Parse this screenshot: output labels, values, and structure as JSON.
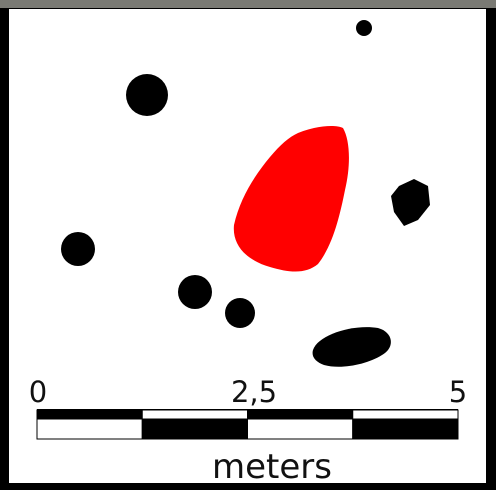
{
  "colors": {
    "frame": "#000000",
    "background": "#ffffff",
    "post_fill": "#000000",
    "feature_fill": "#ff0000",
    "scale_dark": "#000000",
    "scale_light": "#ffffff"
  },
  "features": {
    "posts": [
      "post",
      "post",
      "post",
      "post",
      "post",
      "post",
      "post"
    ],
    "pits": [
      "pit",
      "pit"
    ],
    "highlighted_feature": "red feature"
  },
  "scale_bar": {
    "tick_labels": [
      "0",
      "2,5",
      "5"
    ],
    "unit_label": "meters",
    "max_value": 5,
    "step": 1
  }
}
